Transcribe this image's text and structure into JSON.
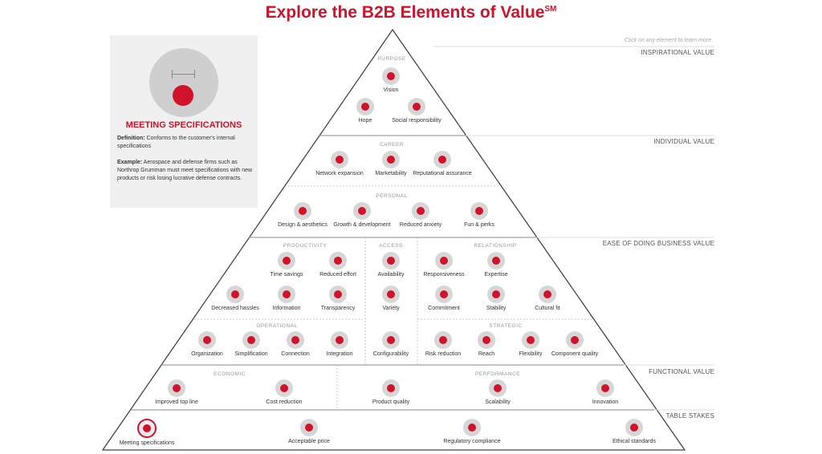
{
  "title": "Explore the B2B Elements of Value",
  "title_sup": "SM",
  "hint": "Click on any element to learn more",
  "levels": {
    "inspirational": "INSPIRATIONAL VALUE",
    "individual": "INDIVIDUAL VALUE",
    "ease": "EASE OF DOING BUSINESS VALUE",
    "functional": "FUNCTIONAL VALUE",
    "table_stakes": "TABLE STAKES"
  },
  "sections": {
    "purpose": "PURPOSE",
    "career": "CAREER",
    "personal": "PERSONAL",
    "productivity": "PRODUCTIVITY",
    "access": "ACCESS",
    "relationship": "RELATIONSHIP",
    "operational": "OPERATIONAL",
    "strategic": "STRATEGIC",
    "economic": "ECONOMIC",
    "performance": "PERFORMANCE"
  },
  "elements": {
    "vision": "Vision",
    "hope": "Hope",
    "social": "Social responsibility",
    "network": "Network expansion",
    "marketability": "Marketability",
    "reputational": "Reputational assurance",
    "design": "Design & aesthetics",
    "growth": "Growth & development",
    "anxiety": "Reduced anxiety",
    "fun": "Fun & perks",
    "time": "Time savings",
    "effort": "Reduced effort",
    "hassles": "Decreased hassles",
    "information": "Information",
    "transparency": "Transparency",
    "availability": "Availability",
    "variety": "Variety",
    "configurability": "Configurability",
    "responsiveness": "Responsiveness",
    "expertise": "Expertise",
    "commitment": "Commitment",
    "stability": "Stability",
    "cultural": "Cultural fit",
    "organization": "Organization",
    "simplification": "Simplification",
    "connection": "Connection",
    "integration": "Integration",
    "risk": "Risk reduction",
    "reach": "Reach",
    "flexibility": "Flexibility",
    "component": "Component quality",
    "topline": "Improved top line",
    "cost": "Cost reduction",
    "product": "Product quality",
    "scalability": "Scalability",
    "innovation": "Innovation",
    "meeting": "Meeting specifications",
    "price": "Acceptable price",
    "regulatory": "Regulatory compliance",
    "ethical": "Ethical standards"
  },
  "panel": {
    "heading": "MEETING SPECIFICATIONS",
    "def_label": "Definition:",
    "def_text": " Conforms to the customer's internal specifications",
    "ex_label": "Example:",
    "ex_text": " Aerospace and defense firms such as Northrop Grumman must meet specifications with new products or risk losing lucrative defense contracts."
  },
  "colors": {
    "accent": "#d1122b",
    "icon_bg": "#d6d6d6",
    "panel_bg": "#f0f0f0"
  }
}
